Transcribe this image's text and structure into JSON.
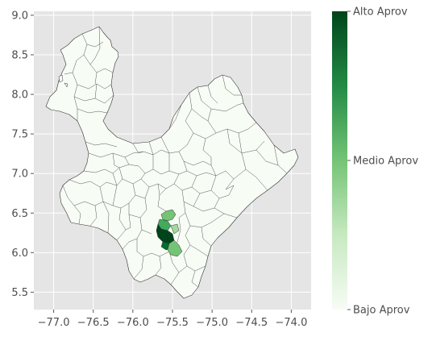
{
  "chart_data": {
    "type": "choropleth",
    "title": "",
    "xlabel": "",
    "ylabel": "",
    "xlim": [
      -77.25,
      -73.75
    ],
    "ylim": [
      5.28,
      9.05
    ],
    "x_ticks": [
      {
        "value": -77.0,
        "label": "−77.0"
      },
      {
        "value": -76.5,
        "label": "−76.5"
      },
      {
        "value": -76.0,
        "label": "−76.0"
      },
      {
        "value": -75.5,
        "label": "−75.5"
      },
      {
        "value": -75.0,
        "label": "−75.0"
      },
      {
        "value": -74.5,
        "label": "−74.5"
      },
      {
        "value": -74.0,
        "label": "−74.0"
      }
    ],
    "y_ticks": [
      {
        "value": 5.5,
        "label": "5.5"
      },
      {
        "value": 6.0,
        "label": "6.0"
      },
      {
        "value": 6.5,
        "label": "6.5"
      },
      {
        "value": 7.0,
        "label": "7.0"
      },
      {
        "value": 7.5,
        "label": "7.5"
      },
      {
        "value": 8.0,
        "label": "8.0"
      },
      {
        "value": 8.5,
        "label": "8.5"
      },
      {
        "value": 9.0,
        "label": "9.0"
      }
    ],
    "grid": true,
    "colormap": "Greens",
    "colorbar": {
      "ticks": [
        {
          "value": 0.0,
          "label": "Bajo Aprov"
        },
        {
          "value": 0.5,
          "label": "Medio Aprov"
        },
        {
          "value": 1.0,
          "label": "Alto Aprov"
        }
      ],
      "low_color": "#f7fcf5",
      "mid_color": "#74c476",
      "high_color": "#00441b"
    },
    "colors": {
      "axes_bg": "#e5e5e5",
      "grid": "#ffffff",
      "base_fill": "#f7fcf5",
      "border": "#333333"
    }
  }
}
